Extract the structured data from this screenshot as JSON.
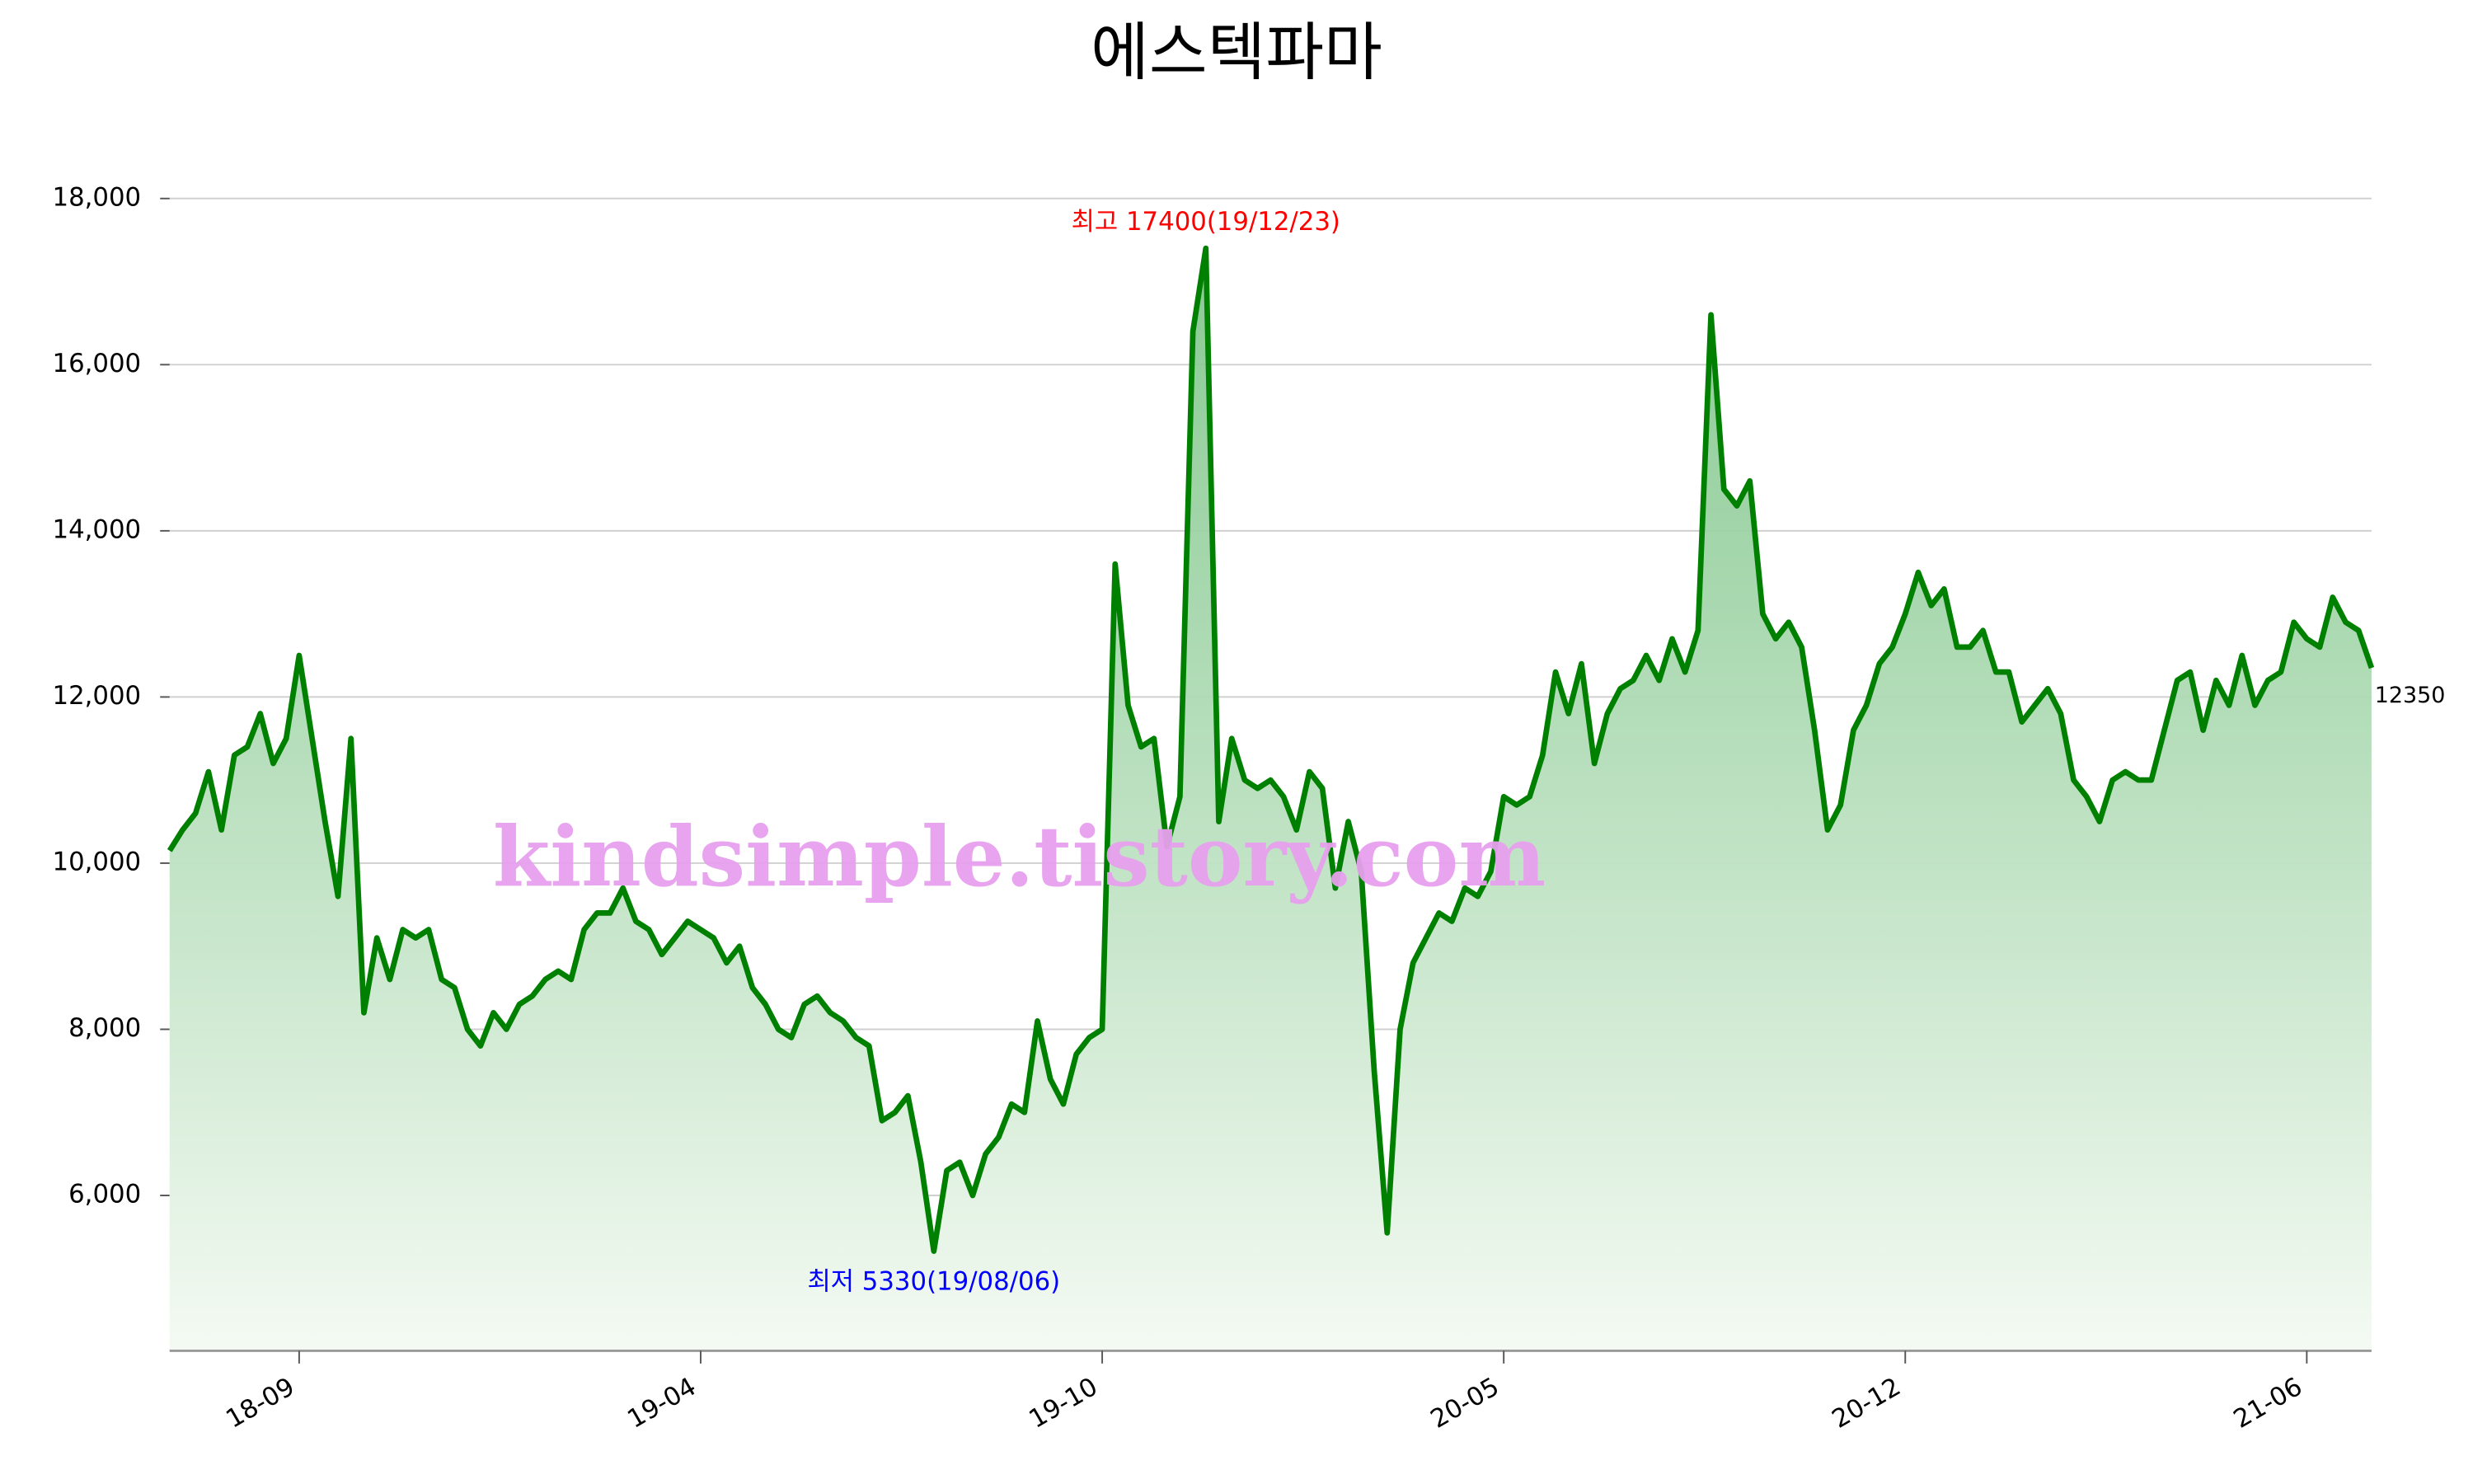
{
  "chart_data": {
    "type": "line",
    "title": "에스텍파마",
    "categories": [
      null,
      null,
      null,
      null,
      null,
      null,
      null,
      null,
      null,
      null,
      "18-09",
      null,
      null,
      null,
      null,
      null,
      null,
      null,
      null,
      null,
      null,
      null,
      null,
      null,
      null,
      null,
      null,
      null,
      null,
      null,
      null,
      null,
      null,
      null,
      null,
      null,
      null,
      null,
      null,
      null,
      null,
      "19-04",
      null,
      null,
      null,
      null,
      null,
      null,
      null,
      null,
      null,
      null,
      null,
      null,
      null,
      null,
      null,
      null,
      null,
      null,
      null,
      null,
      null,
      null,
      null,
      null,
      null,
      null,
      null,
      null,
      null,
      null,
      "19-10",
      null,
      null,
      null,
      null,
      null,
      null,
      null,
      null,
      null,
      null,
      null,
      null,
      null,
      null,
      null,
      null,
      null,
      null,
      null,
      null,
      null,
      null,
      null,
      null,
      null,
      null,
      null,
      null,
      null,
      null,
      "20-05",
      null,
      null,
      null,
      null,
      null,
      null,
      null,
      null,
      null,
      null,
      null,
      null,
      null,
      null,
      null,
      null,
      null,
      null,
      null,
      null,
      null,
      null,
      null,
      null,
      null,
      null,
      null,
      null,
      null,
      null,
      "20-12",
      null,
      null,
      null,
      null,
      null,
      null,
      null,
      null,
      null,
      null,
      null,
      null,
      null,
      null,
      null,
      null,
      null,
      null,
      null,
      null,
      null,
      null,
      null,
      null,
      null,
      null,
      null,
      null,
      null,
      null,
      "21-06",
      null,
      null,
      null,
      null,
      null
    ],
    "values": [
      10150,
      10400,
      10600,
      11100,
      10400,
      11300,
      11400,
      11800,
      11200,
      11500,
      12500,
      11500,
      10500,
      9600,
      11500,
      8200,
      9100,
      8600,
      9200,
      9100,
      9200,
      8600,
      8500,
      8000,
      7800,
      8200,
      8000,
      8300,
      8400,
      8600,
      8700,
      8600,
      9200,
      9400,
      9400,
      9700,
      9300,
      9200,
      8900,
      9100,
      9300,
      9200,
      9100,
      8800,
      9000,
      8500,
      8300,
      8000,
      7900,
      8300,
      8400,
      8200,
      8100,
      7900,
      7800,
      6900,
      7000,
      7200,
      6400,
      5330,
      6300,
      6400,
      6000,
      6500,
      6700,
      7100,
      7000,
      8100,
      7400,
      7100,
      7700,
      7900,
      8000,
      13600,
      11900,
      11400,
      11500,
      10200,
      10800,
      16400,
      17400,
      10500,
      11500,
      11000,
      10900,
      11000,
      10800,
      10400,
      11100,
      10900,
      9700,
      10500,
      9900,
      7500,
      5550,
      8000,
      8800,
      9100,
      9400,
      9300,
      9700,
      9600,
      9900,
      10800,
      10700,
      10800,
      11300,
      12300,
      11800,
      12400,
      11200,
      11800,
      12100,
      12200,
      12500,
      12200,
      12700,
      12300,
      12800,
      16600,
      14500,
      14300,
      14600,
      13000,
      12700,
      12900,
      12600,
      11600,
      10400,
      10700,
      11600,
      11900,
      12400,
      12600,
      13000,
      13500,
      13100,
      13300,
      12600,
      12600,
      12800,
      12300,
      12300,
      11700,
      11900,
      12100,
      11800,
      11000,
      10800,
      10500,
      11000,
      11100,
      11000,
      11000,
      11600,
      12200,
      12300,
      11600,
      12200,
      11900,
      12500,
      11900,
      12200,
      12300,
      12900,
      12700,
      12600,
      13200,
      12900,
      12800,
      12350
    ],
    "color": "#008000",
    "ylim": [
      4130,
      18500
    ],
    "yticks": [
      {
        "value": 6000,
        "label": "6,000"
      },
      {
        "value": 8000,
        "label": "8,000"
      },
      {
        "value": 10000,
        "label": "10,000"
      },
      {
        "value": 12000,
        "label": "12,000"
      },
      {
        "value": 14000,
        "label": "14,000"
      },
      {
        "value": 16000,
        "label": "16,000"
      },
      {
        "value": 18000,
        "label": "18,000"
      }
    ],
    "grid": true,
    "annotations": [
      {
        "text": "최고 17400(19/12/23)",
        "color": "#ff0000"
      },
      {
        "text": "최저 5330(19/08/06)",
        "color": "#0000ff"
      }
    ],
    "watermark": "kindsimple.tistory.com"
  }
}
